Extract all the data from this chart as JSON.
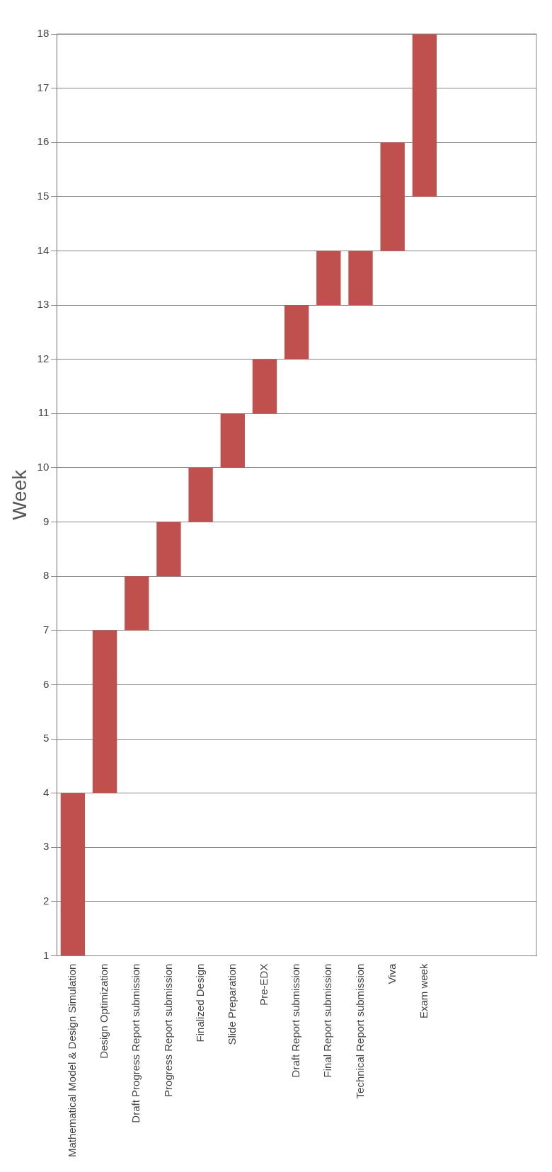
{
  "chart_data": {
    "type": "bar",
    "ylabel": "Week",
    "categories": [
      "Mathematical Model & Design Simulation",
      "Design Optimization",
      "Draft Progress Report submission",
      "Progress Report submission",
      "Finalized Design",
      "Slide Preparation",
      "Pre-EDX",
      "Draft Report submission",
      "Final Report submission",
      "Technical Report submission",
      "Viva",
      "Exam week",
      null,
      null,
      null
    ],
    "values": [
      3,
      3,
      1,
      1,
      1,
      1,
      1,
      1,
      1,
      1,
      2,
      3,
      null,
      null,
      null
    ],
    "base": [
      1,
      4,
      7,
      8,
      9,
      10,
      11,
      12,
      13,
      13,
      14,
      15,
      null,
      null,
      null
    ],
    "color": "#c0504d",
    "ylim": [
      1,
      18
    ],
    "yticks": [
      1,
      2,
      3,
      4,
      5,
      6,
      7,
      8,
      9,
      10,
      11,
      12,
      13,
      14,
      15,
      16,
      17,
      18
    ],
    "grid": "y",
    "legend": false
  }
}
